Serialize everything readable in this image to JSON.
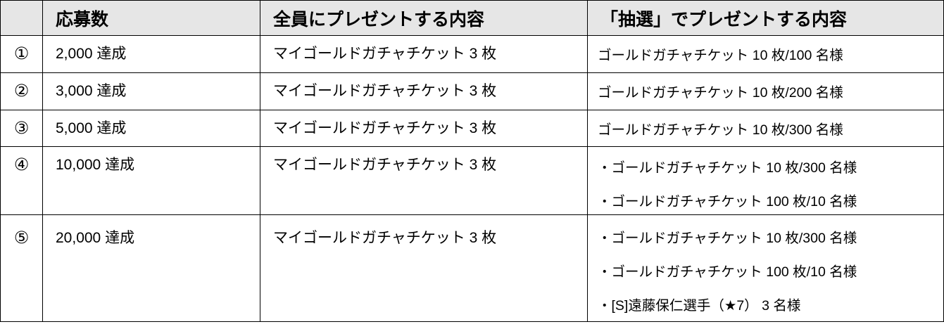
{
  "table": {
    "headers": [
      "",
      "応募数",
      "全員にプレゼントする内容",
      "「抽選」でプレゼントする内容"
    ],
    "header_bg": "#e6e6e6",
    "rows": [
      {
        "no": "①",
        "count": "2,000 達成",
        "all": "マイゴールドガチャチケット 3 枚",
        "lottery": [
          "ゴールドガチャチケット 10 枚/100 名様"
        ]
      },
      {
        "no": "②",
        "count": "3,000 達成",
        "all": "マイゴールドガチャチケット 3 枚",
        "lottery": [
          "ゴールドガチャチケット 10 枚/200 名様"
        ]
      },
      {
        "no": "③",
        "count": "5,000 達成",
        "all": "マイゴールドガチャチケット 3 枚",
        "lottery": [
          "ゴールドガチャチケット 10 枚/300 名様"
        ]
      },
      {
        "no": "④",
        "count": "10,000 達成",
        "all": "マイゴールドガチャチケット 3 枚",
        "lottery": [
          "・ゴールドガチャチケット 10 枚/300 名様",
          "・ゴールドガチャチケット 100 枚/10 名様"
        ]
      },
      {
        "no": "⑤",
        "count": "20,000 達成",
        "all": "マイゴールドガチャチケット 3 枚",
        "lottery": [
          "・ゴールドガチャチケット 10 枚/300 名様",
          "・ゴールドガチャチケット 100 枚/10 名様",
          "・[S]遠藤保仁選手（★7） 3 名様"
        ]
      }
    ]
  }
}
